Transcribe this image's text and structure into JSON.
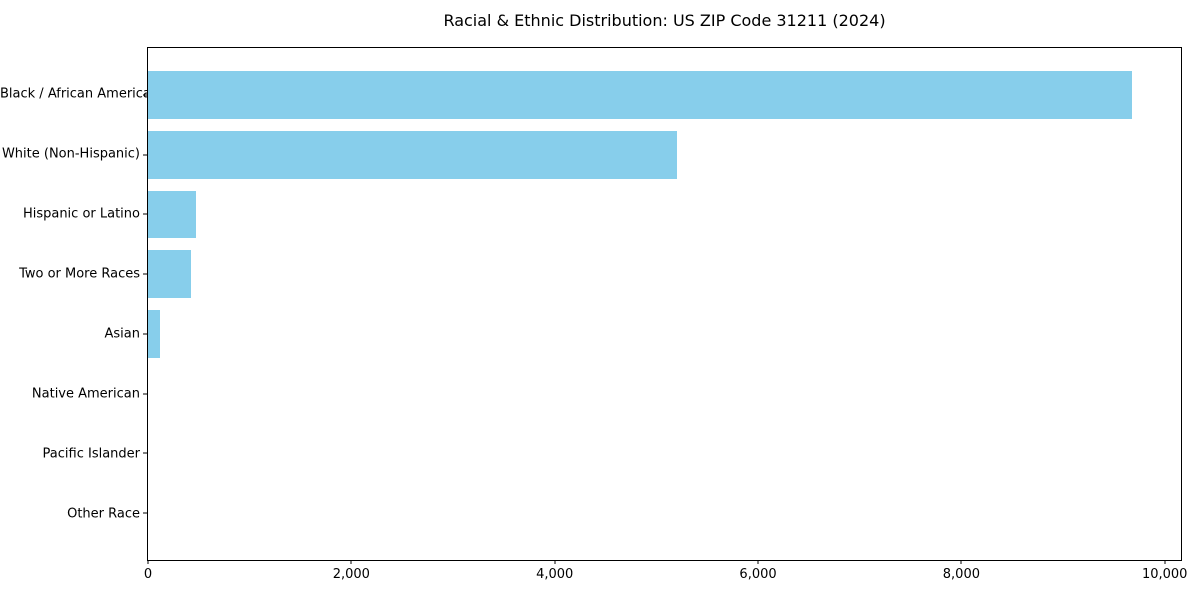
{
  "chart_data": {
    "type": "bar",
    "orientation": "horizontal",
    "title": "Racial & Ethnic Distribution: US ZIP Code 31211 (2024)",
    "categories": [
      "Black / African American",
      "White (Non-Hispanic)",
      "Hispanic or Latino",
      "Two or More Races",
      "Asian",
      "Native American",
      "Pacific Islander",
      "Other Race"
    ],
    "values": [
      9675,
      5200,
      470,
      420,
      120,
      0,
      0,
      0
    ],
    "xlabel": "",
    "ylabel": "",
    "xlim": [
      0,
      10160
    ],
    "x_ticks": [
      0,
      2000,
      4000,
      6000,
      8000,
      10000
    ],
    "x_tick_labels": [
      "0",
      "2,000",
      "4,000",
      "6,000",
      "8,000",
      "10,000"
    ],
    "grid": false,
    "legend": "none",
    "colors": {
      "bar": "#87CEEB",
      "spine": "#000000",
      "text": "#000000",
      "background": "#ffffff"
    }
  }
}
